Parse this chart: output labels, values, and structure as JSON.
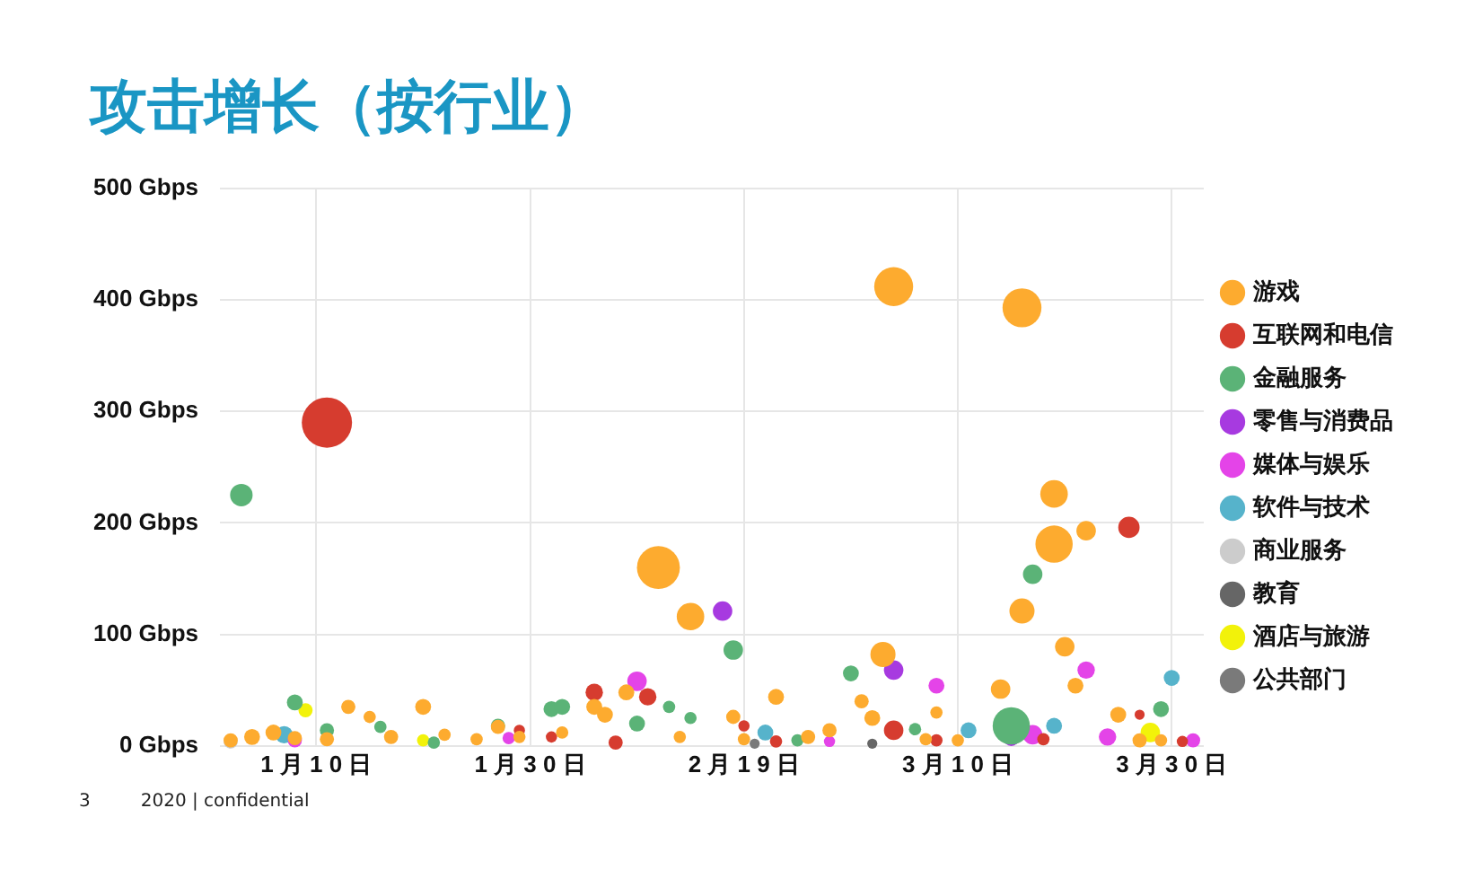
{
  "chart_data": {
    "type": "bubble",
    "title": "攻击增长（按行业）",
    "xlim": [
      "--01-01",
      "--04-02"
    ],
    "xticks": [
      {
        "value": "--01-10",
        "label": "1 月 1 0 日"
      },
      {
        "value": "--01-30",
        "label": "1 月 3 0 日"
      },
      {
        "value": "--02-19",
        "label": "2 月 1 9 日"
      },
      {
        "value": "--03-10",
        "label": "3 月 1 0 日"
      },
      {
        "value": "--03-30",
        "label": "3 月 3 0 日"
      }
    ],
    "ylim": [
      0,
      500
    ],
    "yticks": [
      {
        "value": 0,
        "label": "0 Gbps"
      },
      {
        "value": 100,
        "label": "100 Gbps"
      },
      {
        "value": 200,
        "label": "200 Gbps"
      },
      {
        "value": 300,
        "label": "300 Gbps"
      },
      {
        "value": 400,
        "label": "400 Gbps"
      },
      {
        "value": 500,
        "label": "500 Gbps"
      }
    ],
    "grid": true,
    "legend": "right",
    "series": [
      {
        "name": "游戏",
        "color": "#fdab2f",
        "x": [
          "--01-02",
          "--01-04",
          "--01-06",
          "--01-08",
          "--01-11",
          "--01-13",
          "--01-15",
          "--01-17",
          "--01-20",
          "--01-22",
          "--01-25",
          "--01-27",
          "--01-29",
          "--02-02",
          "--02-05",
          "--02-06",
          "--02-08",
          "--02-11",
          "--02-13",
          "--02-14",
          "--02-18",
          "--02-19",
          "--02-22",
          "--02-25",
          "--02-27",
          "--03-01",
          "--03-02",
          "--03-03",
          "--03-04",
          "--03-07",
          "--03-08",
          "--03-10",
          "--03-14",
          "--03-16",
          "--03-16",
          "--03-19",
          "--03-19",
          "--03-20",
          "--03-21",
          "--03-22",
          "--03-25",
          "--03-27",
          "--03-29"
        ],
        "values": [
          5,
          8,
          12,
          7,
          6,
          35,
          26,
          8,
          35,
          10,
          6,
          17,
          8,
          12,
          35,
          28,
          48,
          160,
          8,
          116,
          26,
          6,
          44,
          8,
          14,
          40,
          25,
          82,
          412,
          6,
          30,
          5,
          51,
          393,
          121,
          226,
          181,
          89,
          54,
          193,
          28,
          5,
          5
        ],
        "sizes": [
          0.08,
          0.1,
          0.1,
          0.08,
          0.08,
          0.08,
          0.06,
          0.08,
          0.1,
          0.06,
          0.06,
          0.08,
          0.06,
          0.06,
          0.1,
          0.1,
          0.1,
          0.73,
          0.06,
          0.3,
          0.08,
          0.06,
          0.1,
          0.08,
          0.08,
          0.08,
          0.1,
          0.25,
          0.6,
          0.06,
          0.06,
          0.06,
          0.15,
          0.6,
          0.25,
          0.3,
          0.55,
          0.15,
          0.1,
          0.15,
          0.1,
          0.08,
          0.06
        ]
      },
      {
        "name": "互联网和电信",
        "color": "#d63c2f",
        "x": [
          "--01-11",
          "--01-29",
          "--02-01",
          "--02-05",
          "--02-07",
          "--02-10",
          "--02-19",
          "--02-22",
          "--03-04",
          "--03-08",
          "--03-18",
          "--03-26",
          "--03-27",
          "--03-31"
        ],
        "values": [
          290,
          14,
          8,
          48,
          3,
          44,
          18,
          4,
          14,
          5,
          6,
          196,
          28,
          4
        ],
        "sizes": [
          1,
          0.05,
          0.05,
          0.12,
          0.08,
          0.12,
          0.05,
          0.06,
          0.15,
          0.06,
          0.06,
          0.18,
          0.04,
          0.05
        ]
      },
      {
        "name": "金融服务",
        "color": "#5bb377",
        "x": [
          "--01-03",
          "--01-08",
          "--01-11",
          "--01-16",
          "--01-21",
          "--01-27",
          "--02-01",
          "--02-02",
          "--02-09",
          "--02-12",
          "--02-14",
          "--02-18",
          "--02-24",
          "--02-29",
          "--03-06",
          "--03-15",
          "--03-17",
          "--03-29"
        ],
        "values": [
          225,
          39,
          14,
          17,
          3,
          18,
          33,
          35,
          20,
          35,
          25,
          86,
          5,
          65,
          15,
          18,
          154,
          33
        ],
        "sizes": [
          0.2,
          0.1,
          0.08,
          0.06,
          0.06,
          0.08,
          0.1,
          0.1,
          0.1,
          0.06,
          0.06,
          0.15,
          0.06,
          0.1,
          0.06,
          0.55,
          0.15,
          0.1
        ]
      },
      {
        "name": "零售与消费品",
        "color": "#a73ae0",
        "x": [
          "--02-17",
          "--03-04",
          "--03-15"
        ],
        "values": [
          121,
          68,
          7
        ],
        "sizes": [
          0.15,
          0.15,
          0.1
        ]
      },
      {
        "name": "媒体与娱乐",
        "color": "#e444e8",
        "x": [
          "--01-08",
          "--01-28",
          "--02-09",
          "--02-27",
          "--03-08",
          "--03-17",
          "--03-22",
          "--03-24",
          "--04-01"
        ],
        "values": [
          5,
          7,
          58,
          4,
          54,
          10,
          68,
          8,
          5
        ],
        "sizes": [
          0.08,
          0.06,
          0.15,
          0.05,
          0.1,
          0.15,
          0.12,
          0.12,
          0.08
        ]
      },
      {
        "name": "软件与技术",
        "color": "#56b3cb",
        "x": [
          "--01-07",
          "--02-21",
          "--03-11",
          "--03-19",
          "--03-30"
        ],
        "values": [
          10,
          12,
          14,
          18,
          61
        ],
        "sizes": [
          0.12,
          0.1,
          0.1,
          0.1,
          0.1
        ]
      },
      {
        "name": "商业服务",
        "color": "#cccccc",
        "x": [
          "--01-02"
        ],
        "values": [
          4
        ],
        "sizes": [
          0.08
        ]
      },
      {
        "name": "教育",
        "color": "#666666",
        "x": [
          "--03-02"
        ],
        "values": [
          2
        ],
        "sizes": [
          0.04
        ]
      },
      {
        "name": "酒店与旅游",
        "color": "#f2f20a",
        "x": [
          "--01-09",
          "--01-20",
          "--03-28"
        ],
        "values": [
          32,
          5,
          12
        ],
        "sizes": [
          0.08,
          0.06,
          0.15
        ]
      },
      {
        "name": "公共部门",
        "color": "#7a7a7a",
        "x": [
          "--02-20"
        ],
        "values": [
          2
        ],
        "sizes": [
          0.04
        ]
      }
    ],
    "annotations": [
      "3",
      "2020 | confidential"
    ]
  }
}
